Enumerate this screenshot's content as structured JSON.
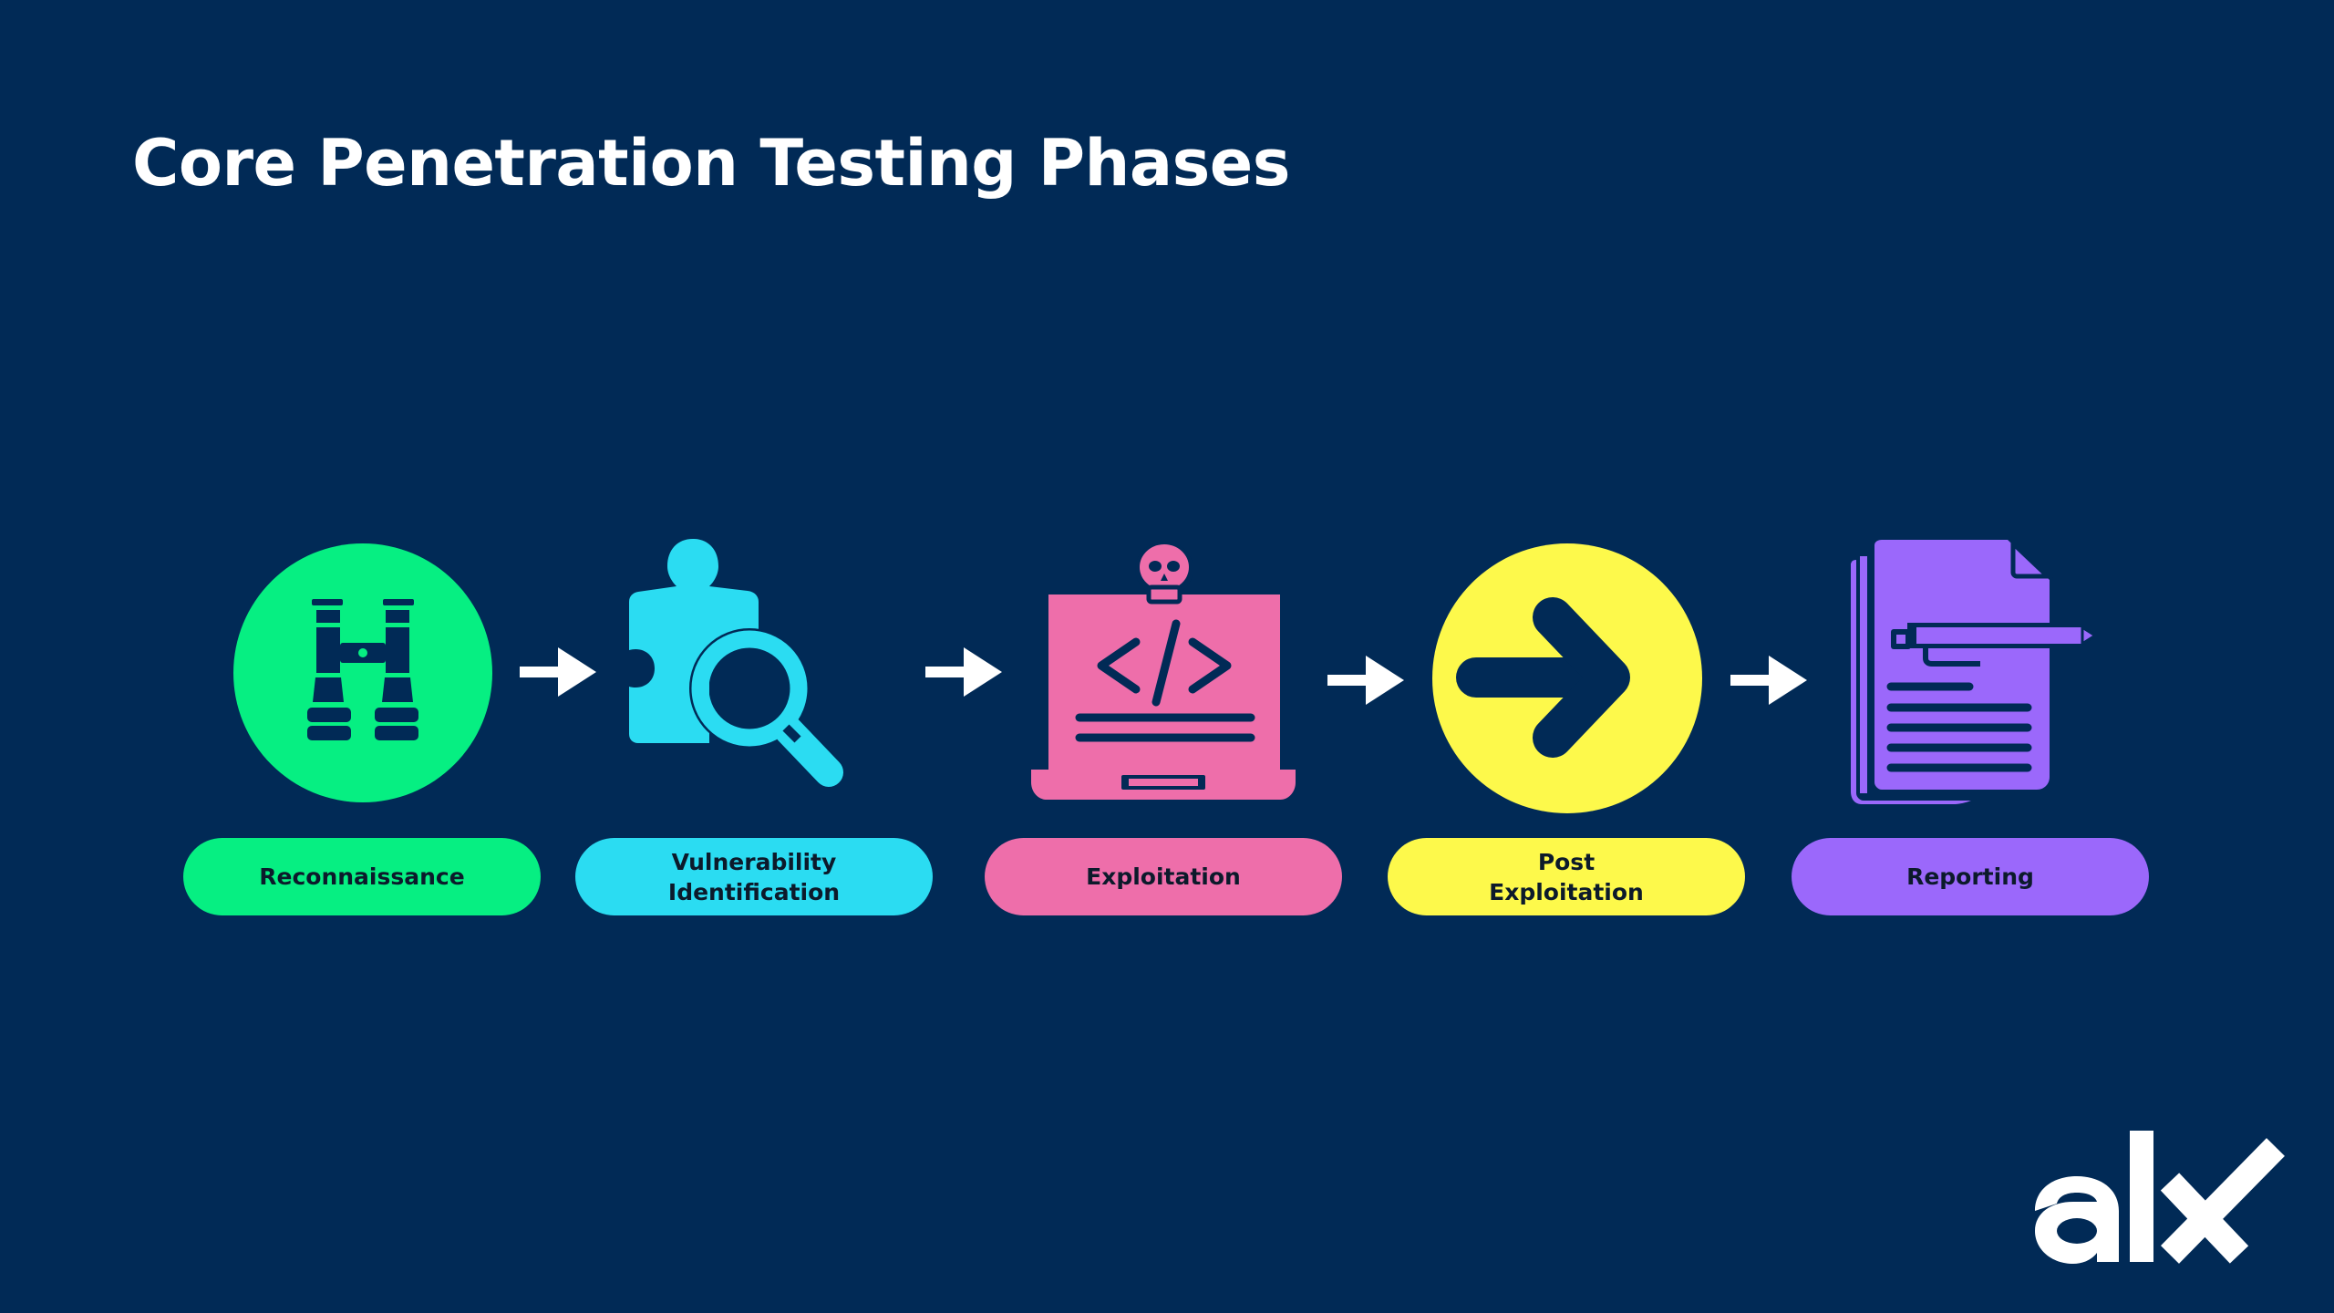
{
  "title": "Core Penetration Testing Phases",
  "colors": {
    "background": "#012a56",
    "navy": "#012a56",
    "white": "#ffffff",
    "green": "#06ef82",
    "cyan": "#2bdcf2",
    "pink": "#ee6eaa",
    "yellow": "#fdf94b",
    "purple": "#9b68fb"
  },
  "phases": [
    {
      "label": "Reconnaissance",
      "icon": "binoculars-icon",
      "color": "#06ef82"
    },
    {
      "label": "Vulnerability\nIdentification",
      "icon": "puzzle-magnifier-icon",
      "color": "#2bdcf2"
    },
    {
      "label": "Exploitation",
      "icon": "laptop-skull-code-icon",
      "color": "#ee6eaa"
    },
    {
      "label": "Post\nExploitation",
      "icon": "arrow-circle-icon",
      "color": "#fdf94b"
    },
    {
      "label": "Reporting",
      "icon": "document-pen-icon",
      "color": "#9b68fb"
    }
  ],
  "flow_arrow_icon": "right-arrow-icon",
  "logo": {
    "text": "alx"
  }
}
